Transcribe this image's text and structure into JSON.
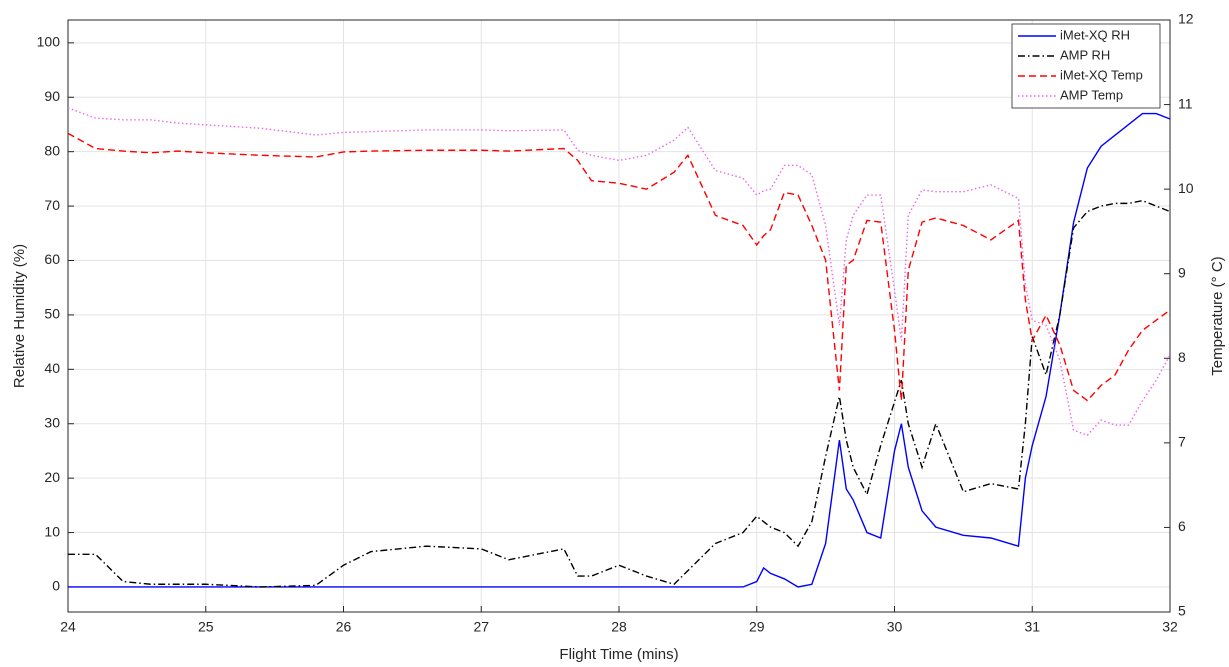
{
  "chart_data": {
    "type": "line",
    "x_label": "Flight Time (mins)",
    "y_label": "Relative Humidity (%)",
    "y2_label": "Temperature (° C)",
    "x": [
      24.0,
      24.2,
      24.4,
      24.6,
      24.8,
      25.0,
      25.4,
      25.8,
      26.0,
      26.2,
      26.6,
      27.0,
      27.2,
      27.6,
      27.7,
      27.8,
      28.0,
      28.2,
      28.4,
      28.5,
      28.7,
      28.9,
      29.0,
      29.05,
      29.1,
      29.2,
      29.3,
      29.4,
      29.5,
      29.6,
      29.65,
      29.7,
      29.8,
      29.9,
      30.0,
      30.05,
      30.1,
      30.2,
      30.3,
      30.5,
      30.7,
      30.9,
      30.95,
      31.0,
      31.1,
      31.2,
      31.3,
      31.4,
      31.5,
      31.6,
      31.7,
      31.8,
      31.9,
      32.0
    ],
    "series": [
      {
        "name": "iMet-XQ RH",
        "color": "#0000ff",
        "dash": "solid",
        "values": [
          0,
          0,
          0,
          0,
          0,
          0,
          0,
          0,
          0,
          0,
          0,
          0,
          0,
          0,
          0,
          0,
          0,
          0,
          0,
          0,
          0,
          0,
          1,
          3.5,
          2.5,
          1.5,
          0,
          0.5,
          8,
          27,
          18,
          16,
          10,
          9,
          25,
          30,
          22,
          14,
          11,
          9.5,
          9,
          7.5,
          20,
          26,
          35,
          50,
          67,
          77,
          81,
          83,
          85,
          87,
          87,
          86
        ]
      },
      {
        "name": "AMP RH",
        "color": "#000000",
        "dash": "dashdot",
        "values": [
          6,
          6,
          1,
          0.5,
          0.5,
          0.5,
          0,
          0.3,
          4,
          6.5,
          7.5,
          7,
          5,
          7,
          2,
          2,
          4,
          2,
          0.5,
          3,
          8,
          10,
          13,
          12,
          11,
          10,
          7.5,
          12,
          24,
          35,
          27,
          22,
          17,
          26,
          34,
          38,
          30,
          22,
          30,
          17.5,
          19,
          18,
          30,
          46,
          39,
          50,
          66,
          69,
          70,
          70.5,
          70.5,
          71,
          70,
          69
        ]
      },
      {
        "name": "iMet-XQ Temp",
        "color": "#ff0000",
        "dash": "dashed",
        "axis": "y2",
        "values": [
          10.66,
          10.48,
          10.45,
          10.43,
          10.45,
          10.43,
          10.4,
          10.38,
          10.44,
          10.45,
          10.46,
          10.46,
          10.45,
          10.48,
          10.34,
          10.1,
          10.07,
          10.0,
          10.2,
          10.4,
          9.69,
          9.57,
          9.34,
          9.45,
          9.52,
          9.96,
          9.93,
          9.57,
          9.16,
          7.62,
          9.1,
          9.16,
          9.63,
          9.61,
          8.33,
          7.5,
          9.04,
          9.61,
          9.66,
          9.57,
          9.4,
          9.63,
          8.69,
          8.21,
          8.51,
          8.16,
          7.62,
          7.5,
          7.68,
          7.8,
          8.1,
          8.33,
          8.45,
          8.57
        ]
      },
      {
        "name": "AMP Temp",
        "color": "#ee66ee",
        "dash": "dotted",
        "axis": "y2",
        "values": [
          10.96,
          10.84,
          10.82,
          10.82,
          10.78,
          10.76,
          10.72,
          10.64,
          10.67,
          10.68,
          10.7,
          10.7,
          10.69,
          10.7,
          10.46,
          10.4,
          10.34,
          10.4,
          10.58,
          10.73,
          10.22,
          10.13,
          9.93,
          9.98,
          10.0,
          10.28,
          10.28,
          10.17,
          9.57,
          8.39,
          9.4,
          9.69,
          9.93,
          9.93,
          8.81,
          8.21,
          9.69,
          9.99,
          9.97,
          9.97,
          10.05,
          9.89,
          8.87,
          8.45,
          8.39,
          7.98,
          7.15,
          7.09,
          7.27,
          7.21,
          7.21,
          7.5,
          7.74,
          8.04
        ]
      }
    ],
    "xlim": [
      24,
      32
    ],
    "xticks": [
      24,
      25,
      26,
      27,
      28,
      29,
      30,
      31,
      32
    ],
    "ylim": [
      -4.6,
      104.2
    ],
    "yticks": [
      0,
      10,
      20,
      30,
      40,
      50,
      60,
      70,
      80,
      90,
      100
    ],
    "y2lim": [
      5,
      12
    ],
    "y2ticks": [
      5,
      6,
      7,
      8,
      9,
      10,
      11,
      12
    ],
    "grid": true,
    "legend": "upper-right"
  }
}
